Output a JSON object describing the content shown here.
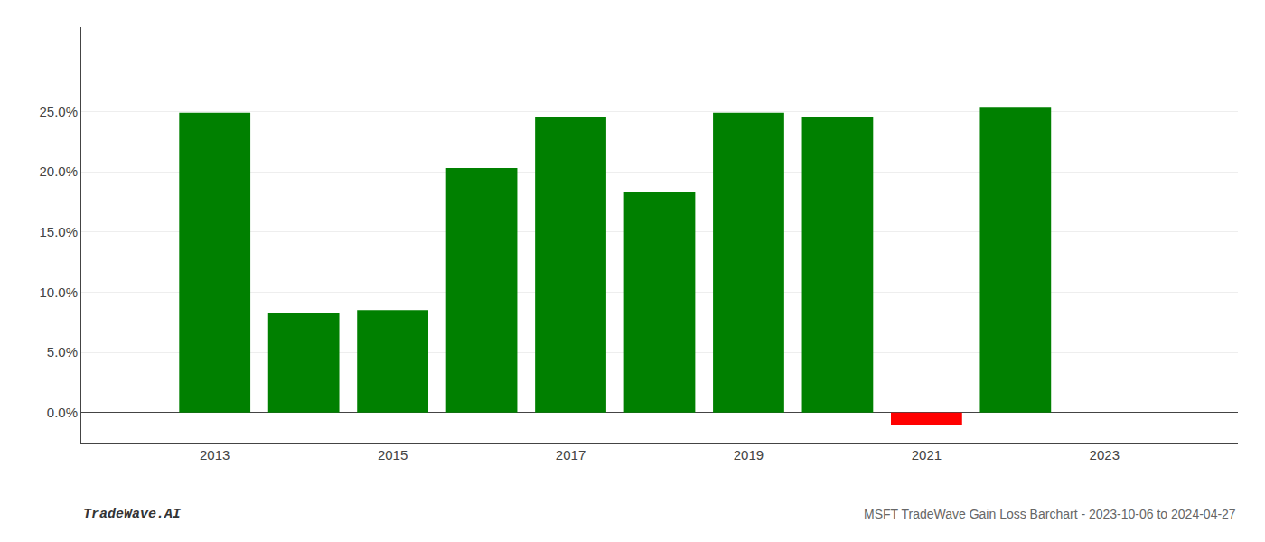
{
  "chart_data": {
    "type": "bar",
    "title": "MSFT TradeWave Gain Loss Barchart - 2023-10-06 to 2024-04-27",
    "annotations": [
      "TradeWave.AI"
    ],
    "x": [
      2013,
      2014,
      2015,
      2016,
      2017,
      2018,
      2019,
      2020,
      2021,
      2022
    ],
    "values": [
      0.249,
      0.083,
      0.085,
      0.203,
      0.245,
      0.183,
      0.249,
      0.245,
      -0.01,
      0.253
    ],
    "colors": [
      "#008000",
      "#008000",
      "#008000",
      "#008000",
      "#008000",
      "#008000",
      "#008000",
      "#008000",
      "#ff0000",
      "#008000"
    ],
    "xlim": [
      2011.5,
      2024.5
    ],
    "xticks": [
      2013,
      2015,
      2017,
      2019,
      2021,
      2023
    ],
    "ylim": [
      -0.025,
      0.32
    ],
    "yticks": [
      {
        "value": 0.0,
        "label": "0.0%"
      },
      {
        "value": 0.05,
        "label": "5.0%"
      },
      {
        "value": 0.1,
        "label": "10.0%"
      },
      {
        "value": 0.15,
        "label": "15.0%"
      },
      {
        "value": 0.2,
        "label": "20.0%"
      },
      {
        "value": 0.25,
        "label": "25.0%"
      }
    ],
    "grid": true
  }
}
